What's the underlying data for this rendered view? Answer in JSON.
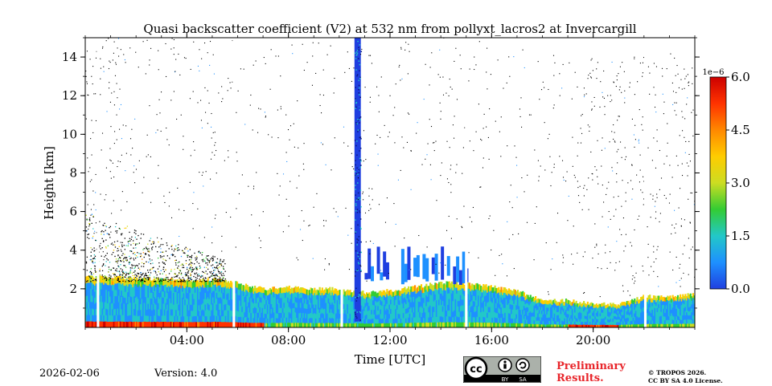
{
  "chart_data": {
    "type": "heatmap",
    "title": "Quasi backscatter coefficient (V2) at 532 nm from pollyxt_lacros2 at Invercargill",
    "xlabel": "Time [UTC]",
    "ylabel": "Height [km]",
    "x_range_hours": [
      0,
      24
    ],
    "y_range_km": [
      0,
      15
    ],
    "x_ticks": [
      {
        "hour": 4,
        "label": "04:00"
      },
      {
        "hour": 8,
        "label": "08:00"
      },
      {
        "hour": 12,
        "label": "12:00"
      },
      {
        "hour": 16,
        "label": "16:00"
      },
      {
        "hour": 20,
        "label": "20:00"
      }
    ],
    "y_ticks": [
      {
        "km": 2,
        "label": "2"
      },
      {
        "km": 4,
        "label": "4"
      },
      {
        "km": 6,
        "label": "6"
      },
      {
        "km": 8,
        "label": "8"
      },
      {
        "km": 10,
        "label": "10"
      },
      {
        "km": 12,
        "label": "12"
      },
      {
        "km": 14,
        "label": "14"
      }
    ],
    "colorbar": {
      "multiplier": "1e−6",
      "min": 0.0,
      "max": 6.0,
      "ticks": [
        {
          "value": 0.0,
          "label": "0.0"
        },
        {
          "value": 1.5,
          "label": "1.5"
        },
        {
          "value": 3.0,
          "label": "3.0"
        },
        {
          "value": 4.5,
          "label": "4.5"
        },
        {
          "value": 6.0,
          "label": "6.0"
        }
      ],
      "colors": [
        "#1f3fe0",
        "#1e90ff",
        "#22c8c8",
        "#33cc33",
        "#ccdd22",
        "#ffcc00",
        "#ff8800",
        "#ff3300",
        "#cc0000"
      ]
    },
    "data_gaps_hours": [
      0.5,
      5.85,
      10.1,
      15.0,
      22.05
    ],
    "boundary_layer_top_km": [
      [
        0,
        2.6
      ],
      [
        1,
        2.6
      ],
      [
        2,
        2.5
      ],
      [
        3,
        2.5
      ],
      [
        4,
        2.4
      ],
      [
        5,
        2.5
      ],
      [
        6,
        2.3
      ],
      [
        7,
        2.0
      ],
      [
        8,
        2.1
      ],
      [
        9,
        2.0
      ],
      [
        10,
        2.0
      ],
      [
        11,
        1.8
      ],
      [
        12,
        1.9
      ],
      [
        13,
        2.1
      ],
      [
        14,
        2.3
      ],
      [
        15,
        2.3
      ],
      [
        16,
        2.1
      ],
      [
        17,
        1.9
      ],
      [
        18,
        1.4
      ],
      [
        19,
        1.4
      ],
      [
        20,
        1.2
      ],
      [
        21,
        1.2
      ],
      [
        22,
        1.6
      ],
      [
        23,
        1.6
      ],
      [
        24,
        1.7
      ]
    ],
    "cloud_features": [
      {
        "name": "tall-column",
        "start_hour": 10.6,
        "end_hour": 10.85,
        "base_km": 0.3,
        "top_km": 15.0
      },
      {
        "name": "elevated-layer",
        "start_hour": 11.0,
        "end_hour": 15.0,
        "base_km": 2.2,
        "top_km": 4.3
      },
      {
        "name": "aerosol-layer-night",
        "start_hour": 0.0,
        "end_hour": 5.5,
        "base_km": 2.4,
        "top_km": 6.0
      }
    ]
  },
  "footer": {
    "date": "2026-02-06",
    "version": "Version: 4.0",
    "preliminary_line1": "Preliminary",
    "preliminary_line2": "Results.",
    "copyright_line1": "© TROPOS 2026.",
    "copyright_line2": "CC BY SA 4.0 License."
  },
  "license_badge": {
    "cc": "cc",
    "by": "BY",
    "sa": "SA"
  },
  "colors": {
    "preliminary": "#e8262b"
  }
}
